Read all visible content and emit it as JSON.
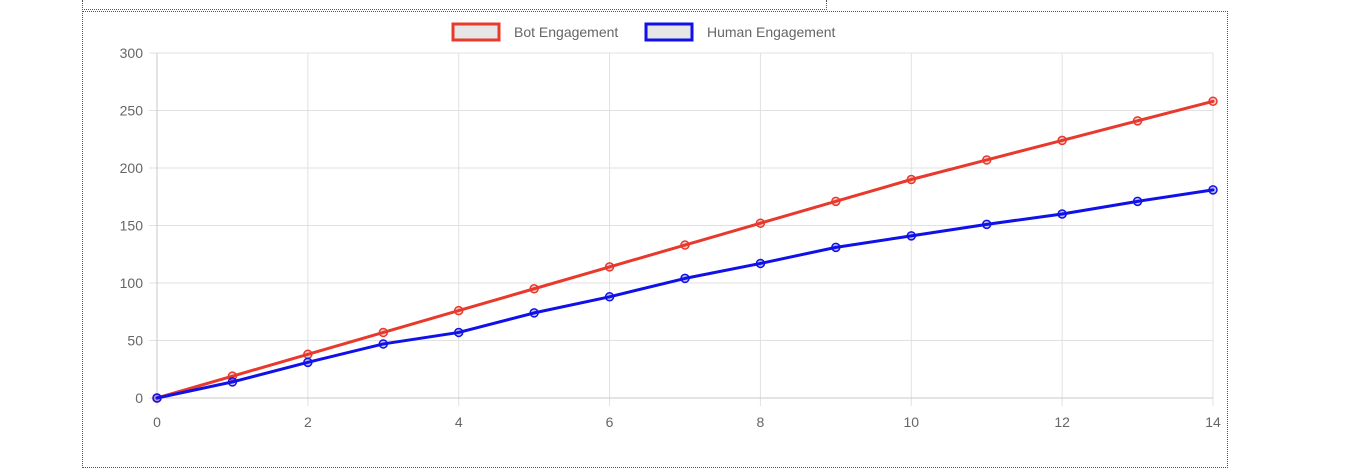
{
  "chart_data": {
    "type": "line",
    "title": "",
    "xlabel": "",
    "ylabel": "",
    "x": [
      0,
      1,
      2,
      3,
      4,
      5,
      6,
      7,
      8,
      9,
      10,
      11,
      12,
      13,
      14
    ],
    "xlim": [
      0,
      14
    ],
    "ylim": [
      0,
      300
    ],
    "x_ticks": [
      "0",
      "2",
      "4",
      "6",
      "8",
      "10",
      "12",
      "14"
    ],
    "y_ticks": [
      "0",
      "50",
      "100",
      "150",
      "200",
      "250",
      "300"
    ],
    "grid": true,
    "legend_position": "top-center",
    "series": [
      {
        "name": "Bot Engagement",
        "color": "#e8392d",
        "values": [
          0,
          19,
          38,
          57,
          76,
          95,
          114,
          133,
          152,
          171,
          190,
          207,
          224,
          241,
          258
        ]
      },
      {
        "name": "Human Engagement",
        "color": "#1010e8",
        "values": [
          0,
          14,
          31,
          47,
          57,
          74,
          88,
          104,
          117,
          131,
          141,
          151,
          160,
          171,
          181
        ]
      }
    ]
  }
}
